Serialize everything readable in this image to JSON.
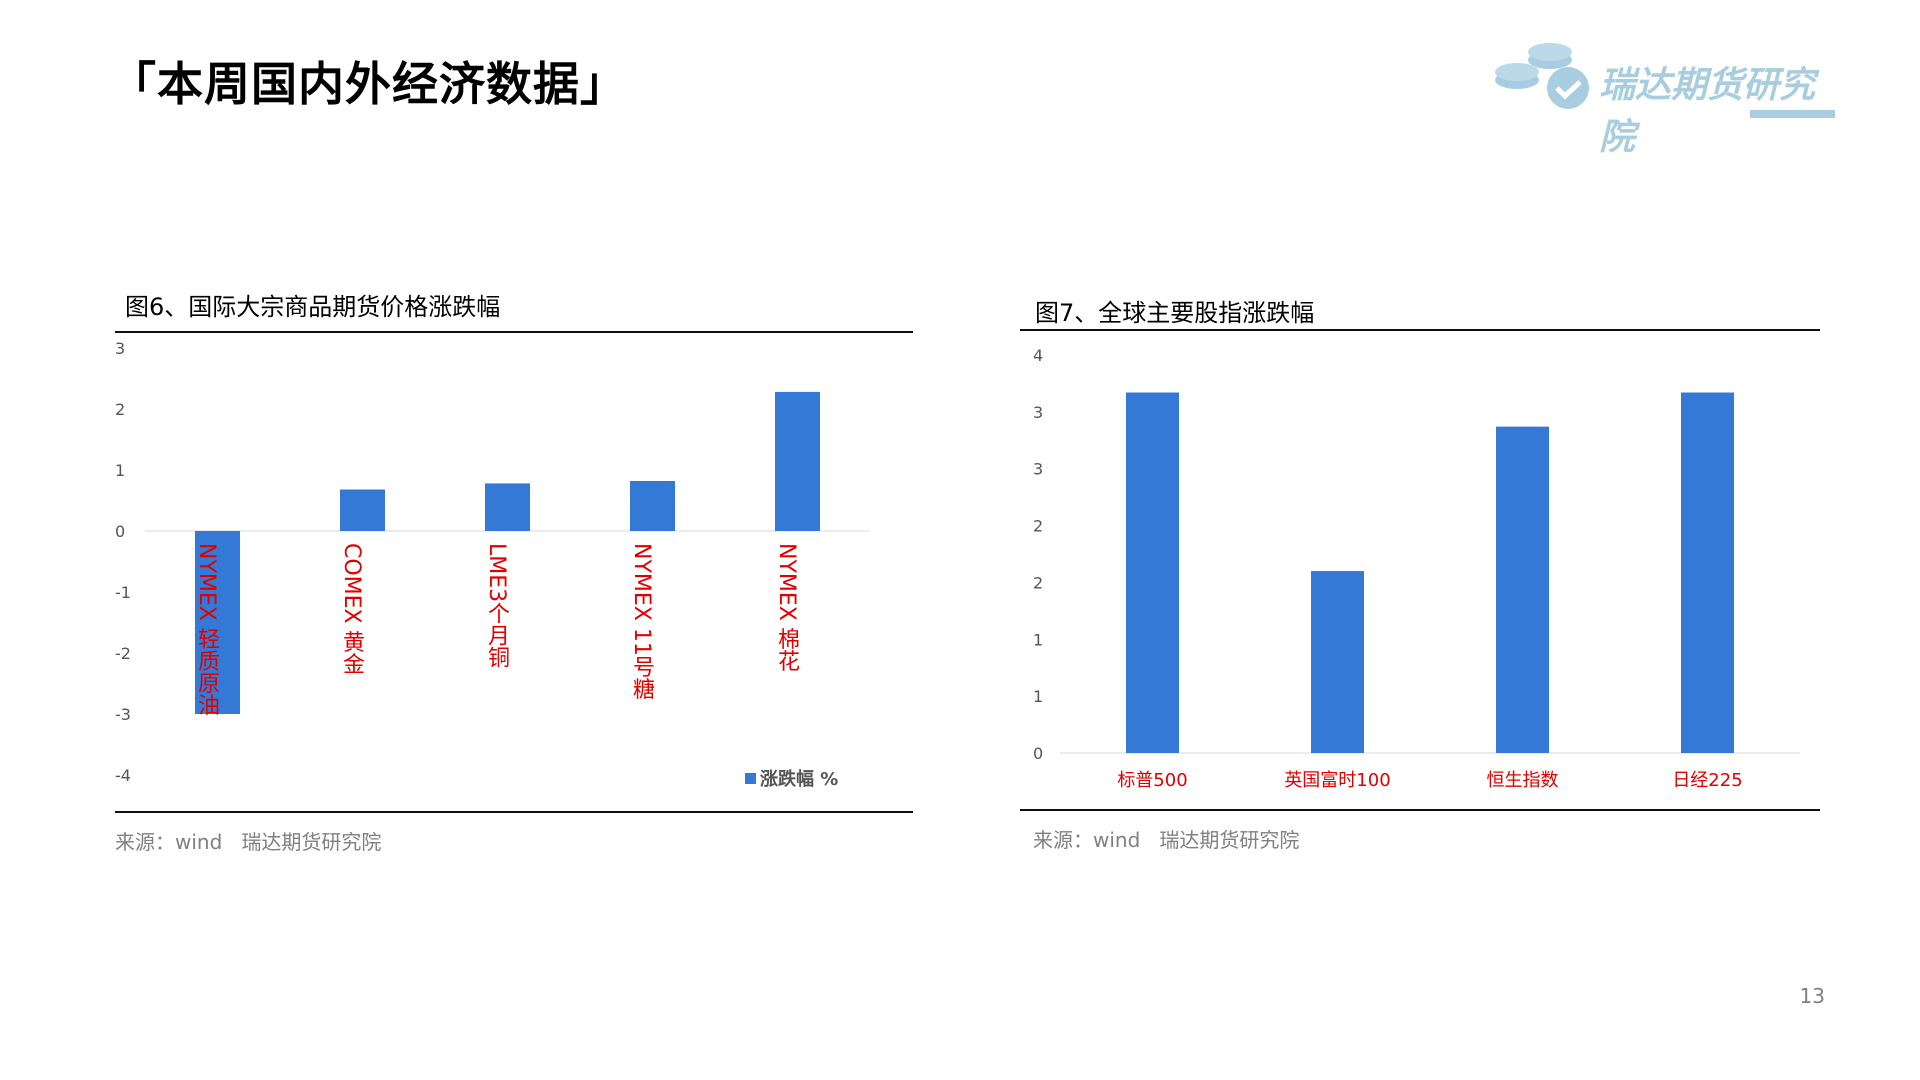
{
  "page": {
    "title": "「本周国内外经济数据」",
    "logo_text": "瑞达期货研究院",
    "page_number": "13"
  },
  "colors": {
    "bar": "#3479d6",
    "label_red": "#e00000",
    "axis_text": "#555555",
    "logo": "#a8cde0"
  },
  "chart_data": [
    {
      "type": "bar",
      "title": "图6、国际大宗商品期货价格涨跌幅",
      "categories": [
        "NYMEX 轻质原油",
        "COMEX 黄金",
        "LME3个月铜",
        "NYMEX 11号糖",
        "NYMEX 棉花"
      ],
      "series": [
        {
          "name": "涨跌幅 %",
          "values": [
            -3.0,
            0.68,
            0.78,
            0.82,
            2.28
          ]
        }
      ],
      "ylim": [
        -4,
        3
      ],
      "yticks": [
        "-4",
        "-3",
        "-2",
        "-1",
        "0",
        "1",
        "2",
        "3"
      ],
      "legend": "bottom-right",
      "category_label_orientation": "vertical",
      "source": "来源：wind   瑞达期货研究院"
    },
    {
      "type": "bar",
      "title": "图7、全球主要股指涨跌幅",
      "categories": [
        "标普500",
        "英国富时100",
        "恒生指数",
        "日经225"
      ],
      "series": [
        {
          "values": [
            3.17,
            1.6,
            2.87,
            3.17
          ]
        }
      ],
      "ylim": [
        0,
        3.5
      ],
      "yticks": [
        "0",
        "1",
        "1",
        "2",
        "2",
        "3",
        "3",
        "4"
      ],
      "legend": "none",
      "source": "来源：wind   瑞达期货研究院"
    }
  ]
}
